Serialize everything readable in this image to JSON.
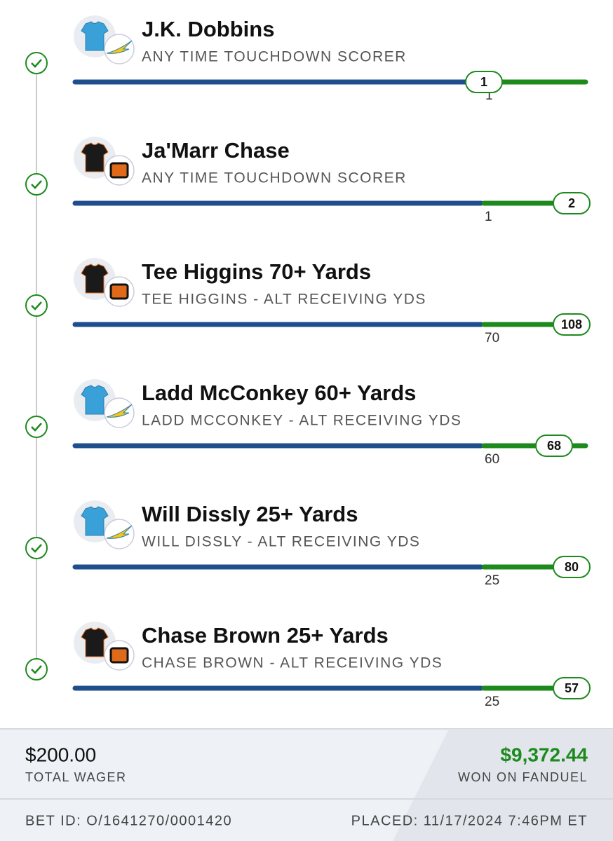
{
  "legs": [
    {
      "title": "J.K. Dobbins",
      "market": "ANY TIME TOUCHDOWN SCORER",
      "target": "1",
      "result": "1"
    },
    {
      "title": "Ja'Marr Chase",
      "market": "ANY TIME TOUCHDOWN SCORER",
      "target": "1",
      "result": "2"
    },
    {
      "title": "Tee Higgins 70+ Yards",
      "market": "TEE HIGGINS - ALT RECEIVING YDS",
      "target": "70",
      "result": "108"
    },
    {
      "title": "Ladd McConkey 60+ Yards",
      "market": "LADD MCCONKEY - ALT RECEIVING YDS",
      "target": "60",
      "result": "68"
    },
    {
      "title": "Will Dissly 25+ Yards",
      "market": "WILL DISSLY - ALT RECEIVING YDS",
      "target": "25",
      "result": "80"
    },
    {
      "title": "Chase Brown 25+ Yards",
      "market": "CHASE BROWN - ALT RECEIVING YDS",
      "target": "25",
      "result": "57"
    }
  ],
  "footer": {
    "wager": "$200.00",
    "wager_label": "TOTAL WAGER",
    "payout": "$9,372.44",
    "payout_label": "WON ON FANDUEL",
    "bet_id": "BET ID: O/1641270/0001420",
    "placed": "PLACED: 11/17/2024 7:46PM ET"
  }
}
